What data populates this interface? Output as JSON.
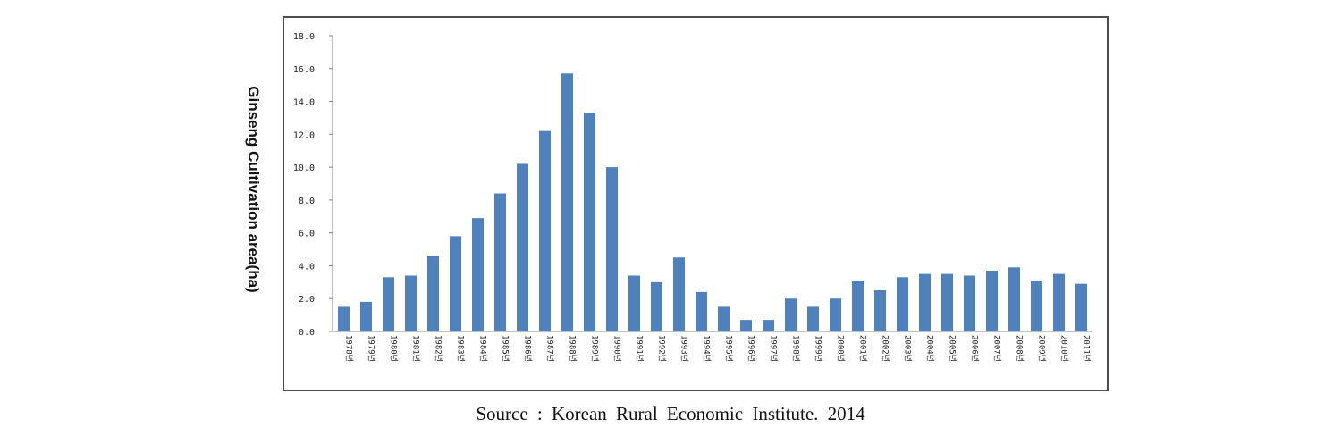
{
  "chart_data": {
    "type": "bar",
    "ylabel": "Ginseng Cultivation area(ha)",
    "xlabel": "",
    "ylim": [
      0,
      18
    ],
    "yticks": [
      "0.0",
      "2.0",
      "4.0",
      "6.0",
      "8.0",
      "10.0",
      "12.0",
      "14.0",
      "16.0",
      "18.0"
    ],
    "categories": [
      "1978년",
      "1979년",
      "1980년",
      "1981년",
      "1982년",
      "1983년",
      "1984년",
      "1985년",
      "1986년",
      "1987년",
      "1988년",
      "1989년",
      "1990년",
      "1991년",
      "1992년",
      "1993년",
      "1994년",
      "1995년",
      "1996년",
      "1997년",
      "1998년",
      "1999년",
      "2000년",
      "2001년",
      "2002년",
      "2003년",
      "2004년",
      "2005년",
      "2006년",
      "2007년",
      "2008년",
      "2009년",
      "2010년",
      "2011년"
    ],
    "values": [
      1.5,
      1.8,
      3.3,
      3.4,
      4.6,
      5.8,
      6.9,
      8.4,
      10.2,
      12.2,
      15.7,
      13.3,
      10.0,
      3.4,
      3.0,
      4.5,
      2.4,
      1.5,
      0.7,
      0.7,
      2.0,
      1.5,
      2.0,
      3.1,
      2.5,
      3.3,
      3.5,
      3.5,
      3.4,
      3.7,
      3.9,
      3.1,
      3.5,
      2.9
    ],
    "bar_color": "#4f81bd",
    "grid": false
  },
  "source": "Source : Korean Rural Economic Institute. 2014"
}
